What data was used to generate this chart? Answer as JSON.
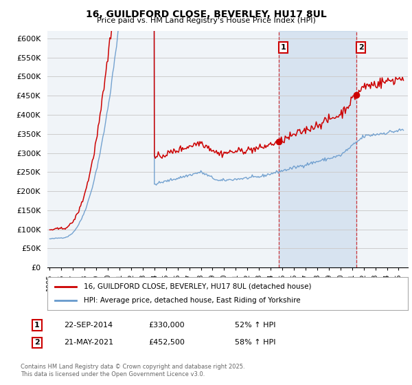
{
  "title": "16, GUILDFORD CLOSE, BEVERLEY, HU17 8UL",
  "subtitle": "Price paid vs. HM Land Registry's House Price Index (HPI)",
  "legend_line1": "16, GUILDFORD CLOSE, BEVERLEY, HU17 8UL (detached house)",
  "legend_line2": "HPI: Average price, detached house, East Riding of Yorkshire",
  "annotation1_date": "22-SEP-2014",
  "annotation1_price": "£330,000",
  "annotation1_hpi": "52% ↑ HPI",
  "annotation2_date": "21-MAY-2021",
  "annotation2_price": "£452,500",
  "annotation2_hpi": "58% ↑ HPI",
  "footnote": "Contains HM Land Registry data © Crown copyright and database right 2025.\nThis data is licensed under the Open Government Licence v3.0.",
  "red_color": "#cc0000",
  "blue_color": "#6699cc",
  "blue_fill": "#ddeeff",
  "grid_color": "#cccccc",
  "bg_color": "#f0f4f8",
  "dashed_color": "#cc0000",
  "ylim": [
    0,
    620000
  ],
  "yticks": [
    0,
    50000,
    100000,
    150000,
    200000,
    250000,
    300000,
    350000,
    400000,
    450000,
    500000,
    550000,
    600000
  ],
  "xlim_start": 1994.8,
  "xlim_end": 2025.8,
  "marker1_x": 2014.72,
  "marker1_y": 330000,
  "marker2_x": 2021.38,
  "marker2_y": 452500,
  "vline1_x": 2014.72,
  "vline2_x": 2021.38,
  "noise_seed": 42
}
